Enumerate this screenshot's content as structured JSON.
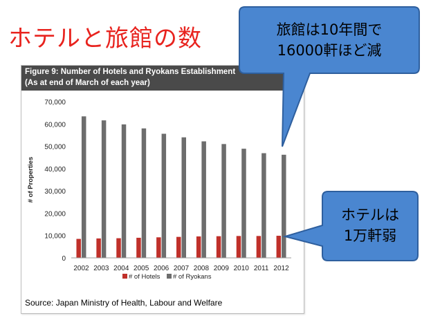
{
  "page": {
    "main_title": "ホテルと旅館の数"
  },
  "callouts": {
    "ryokan": {
      "line1": "旅館は10年間で",
      "line2": "16000軒ほど減"
    },
    "hotel": {
      "line1": "ホテルは",
      "line2": "1万軒弱"
    },
    "fill_color": "#4a86d0",
    "stroke_color": "#2e5f9e"
  },
  "chart_data": {
    "type": "bar",
    "title": "Figure 9: Number of Hotels and Ryokans Establishment",
    "subtitle": "(As at end of March of each year)",
    "ylabel": "# of Properties",
    "xlabel": "",
    "ylim": [
      0,
      70000
    ],
    "yticks": [
      "0",
      "10,000",
      "20,000",
      "30,000",
      "40,000",
      "50,000",
      "60,000",
      "70,000"
    ],
    "ytick_values": [
      0,
      10000,
      20000,
      30000,
      40000,
      50000,
      60000,
      70000
    ],
    "categories": [
      "2002",
      "2003",
      "2004",
      "2005",
      "2006",
      "2007",
      "2008",
      "2009",
      "2010",
      "2011",
      "2012"
    ],
    "series": [
      {
        "name": "# of Hotels",
        "color": "#c0302a",
        "values": [
          8500,
          8700,
          8800,
          9000,
          9200,
          9400,
          9600,
          9700,
          9800,
          9800,
          9900
        ]
      },
      {
        "name": "# of Ryokans",
        "color": "#6d6d6d",
        "values": [
          63400,
          61600,
          59800,
          58000,
          55600,
          54000,
          52200,
          51000,
          48900,
          46900,
          46200
        ]
      }
    ],
    "grid": false,
    "legend_position": "bottom",
    "source": "Source: Japan Ministry of Health, Labour and Welfare"
  }
}
